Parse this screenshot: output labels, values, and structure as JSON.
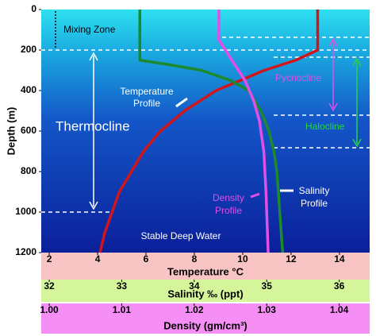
{
  "chart_data": {
    "type": "line",
    "ylabel": "Depth (m)",
    "ylim": [
      0,
      1200
    ],
    "yticks": [
      0,
      200,
      400,
      600,
      800,
      1000,
      1200
    ],
    "y_inverted": true,
    "xaxes": [
      {
        "label": "Temperature °C",
        "xlim": [
          1.67,
          15.25
        ],
        "xticks": [
          2,
          4,
          6,
          8,
          10,
          12,
          14
        ],
        "color": "#f9c4c4"
      },
      {
        "label": "Salinity ‰ (ppt)",
        "xlim": [
          31.89,
          36.42
        ],
        "xticks": [
          32,
          33,
          34,
          35,
          36
        ],
        "color": "#d4f59a"
      },
      {
        "label": "Density (gm/cm³)",
        "xlim": [
          0.9989,
          1.0442
        ],
        "xticks": [
          {
            "value": 1.0,
            "label": "1.00"
          },
          1.01,
          1.02,
          1.03,
          1.04
        ],
        "color": "#f58ef5"
      }
    ],
    "series": [
      {
        "name": "Temperature Profile",
        "color": "#d0161b",
        "axis": 0,
        "depths": [
          0,
          200,
          250,
          300,
          400,
          500,
          600,
          700,
          800,
          900,
          1000,
          1100,
          1200
        ],
        "values": [
          13.1,
          13.1,
          12.2,
          10.9,
          8.9,
          7.6,
          6.6,
          5.9,
          5.4,
          4.9,
          4.6,
          4.3,
          4.1
        ]
      },
      {
        "name": "Salinity Profile",
        "color": "#1c8a2c",
        "axis": 1,
        "depths": [
          0,
          250,
          275,
          300,
          350,
          400,
          500,
          600,
          700,
          800,
          1000,
          1200
        ],
        "values": [
          33.25,
          33.25,
          33.7,
          34.1,
          34.5,
          34.75,
          34.92,
          35.03,
          35.1,
          35.14,
          35.18,
          35.22
        ]
      },
      {
        "name": "Density Profile",
        "color": "#e050e8",
        "axis": 2,
        "depths": [
          0,
          150,
          250,
          350,
          450,
          550,
          700,
          900,
          1200
        ],
        "values": [
          1.0234,
          1.0234,
          1.0252,
          1.027,
          1.0282,
          1.029,
          1.0296,
          1.0299,
          1.0302
        ]
      }
    ],
    "annotations": [
      "Mixing Zone",
      "Thermocline",
      "Pycnocline",
      "Halocline",
      "Temperature",
      "Profile",
      "Density",
      "Profile",
      "Salinity",
      "Profile",
      "Stable Deep Water"
    ]
  }
}
